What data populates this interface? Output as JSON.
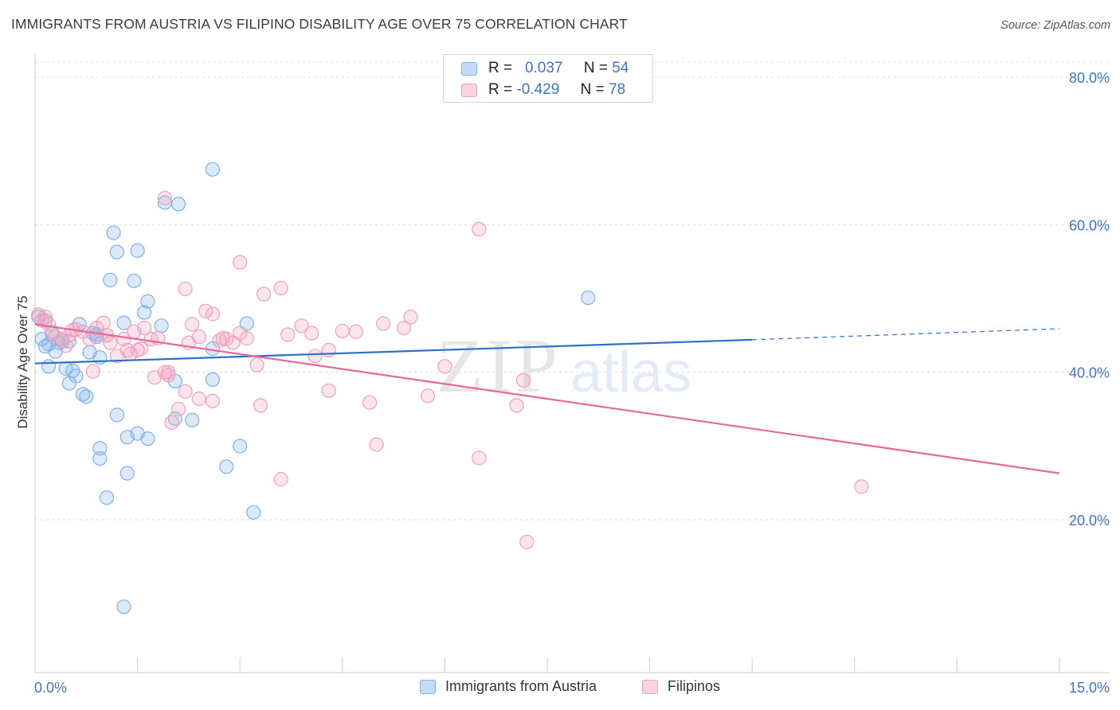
{
  "title": "IMMIGRANTS FROM AUSTRIA VS FILIPINO DISABILITY AGE OVER 75 CORRELATION CHART",
  "source": "Source: ZipAtlas.com",
  "watermark": {
    "zip": "ZIP",
    "atlas": "atlas"
  },
  "legend_top": [
    {
      "r_label": "R =",
      "r_value": "0.037",
      "n_label": "N =",
      "n_value": "54",
      "color": "#7fb0ea"
    },
    {
      "r_label": "R =",
      "r_value": "-0.429",
      "n_label": "N =",
      "n_value": "78",
      "color": "#f0a0bb"
    }
  ],
  "legend_bottom": [
    {
      "label": "Immigrants from Austria",
      "color": "#7fb0ea"
    },
    {
      "label": "Filipinos",
      "color": "#f0a0bb"
    }
  ],
  "chart_data": {
    "type": "scatter",
    "title": "IMMIGRANTS FROM AUSTRIA VS FILIPINO DISABILITY AGE OVER 75 CORRELATION CHART",
    "xlabel": "",
    "ylabel": "Disability Age Over 75",
    "xlim": [
      0,
      15
    ],
    "ylim": [
      0,
      83
    ],
    "x_tick_labels": [
      "0.0%",
      "15.0%"
    ],
    "y_ticks": [
      20,
      40,
      60,
      80
    ],
    "y_tick_labels": [
      "20.0%",
      "40.0%",
      "60.0%",
      "80.0%"
    ],
    "grid": "horizontal dashed",
    "legend_placement": "top-center and bottom",
    "series": [
      {
        "name": "Immigrants from Austria",
        "color": "#7fb0ea",
        "line_color": "#2f6fcc",
        "r": 0.037,
        "n": 54,
        "trend": {
          "x0": 0,
          "y0": 41.2,
          "x1": 10.5,
          "y1": 44.4,
          "dashed_to_x": 15,
          "dashed_to_y": 45.9
        },
        "points": [
          [
            0.05,
            47.5
          ],
          [
            0.1,
            44.5
          ],
          [
            0.15,
            43.5
          ],
          [
            0.2,
            43.8
          ],
          [
            0.25,
            45.2
          ],
          [
            0.3,
            42.8
          ],
          [
            0.35,
            44.0
          ],
          [
            0.2,
            40.8
          ],
          [
            0.45,
            40.5
          ],
          [
            0.5,
            44.2
          ],
          [
            0.55,
            40.2
          ],
          [
            0.6,
            39.5
          ],
          [
            0.5,
            38.5
          ],
          [
            0.7,
            37.0
          ],
          [
            0.75,
            36.7
          ],
          [
            0.8,
            42.7
          ],
          [
            0.85,
            45.3
          ],
          [
            0.9,
            45.1
          ],
          [
            0.95,
            42.0
          ],
          [
            1.1,
            52.5
          ],
          [
            1.15,
            58.9
          ],
          [
            1.2,
            56.3
          ],
          [
            1.3,
            46.7
          ],
          [
            1.45,
            52.4
          ],
          [
            1.5,
            56.5
          ],
          [
            1.6,
            48.1
          ],
          [
            1.65,
            49.6
          ],
          [
            1.85,
            46.3
          ],
          [
            1.9,
            63.0
          ],
          [
            2.05,
            38.8
          ],
          [
            2.1,
            62.8
          ],
          [
            2.6,
            67.5
          ],
          [
            2.6,
            43.2
          ],
          [
            2.6,
            39.0
          ],
          [
            3.1,
            46.6
          ],
          [
            1.2,
            34.2
          ],
          [
            1.35,
            31.2
          ],
          [
            1.5,
            31.7
          ],
          [
            1.65,
            31.0
          ],
          [
            2.05,
            33.7
          ],
          [
            2.3,
            33.5
          ],
          [
            0.95,
            29.7
          ],
          [
            0.95,
            28.3
          ],
          [
            1.35,
            26.3
          ],
          [
            1.05,
            23.0
          ],
          [
            2.8,
            27.2
          ],
          [
            3.0,
            30.0
          ],
          [
            3.2,
            21.0
          ],
          [
            1.3,
            8.2
          ],
          [
            8.1,
            50.1
          ],
          [
            0.15,
            47.0
          ],
          [
            0.4,
            44.2
          ],
          [
            0.65,
            46.5
          ],
          [
            0.9,
            44.8
          ]
        ]
      },
      {
        "name": "Filipinos",
        "color": "#f0a0bb",
        "line_color": "#e8679a",
        "r": -0.429,
        "n": 78,
        "trend": {
          "x0": 0,
          "y0": 46.5,
          "x1": 15,
          "y1": 26.3
        },
        "points": [
          [
            0.05,
            47.8
          ],
          [
            0.1,
            47.0
          ],
          [
            0.15,
            47.5
          ],
          [
            0.2,
            46.5
          ],
          [
            0.25,
            45.5
          ],
          [
            0.3,
            44.8
          ],
          [
            0.4,
            44.5
          ],
          [
            0.5,
            45.0
          ],
          [
            0.6,
            45.8
          ],
          [
            0.7,
            45.5
          ],
          [
            0.8,
            44.5
          ],
          [
            0.9,
            46.0
          ],
          [
            1.0,
            46.7
          ],
          [
            1.05,
            45.0
          ],
          [
            1.1,
            44.0
          ],
          [
            1.2,
            42.2
          ],
          [
            1.3,
            44.5
          ],
          [
            1.35,
            43.0
          ],
          [
            1.4,
            42.5
          ],
          [
            1.45,
            45.5
          ],
          [
            1.5,
            43.0
          ],
          [
            1.6,
            46.0
          ],
          [
            1.7,
            44.5
          ],
          [
            1.75,
            39.3
          ],
          [
            1.8,
            44.6
          ],
          [
            1.9,
            40.0
          ],
          [
            1.95,
            40.0
          ],
          [
            2.0,
            33.2
          ],
          [
            2.1,
            35.0
          ],
          [
            2.2,
            37.4
          ],
          [
            2.25,
            44.0
          ],
          [
            2.3,
            46.5
          ],
          [
            2.4,
            44.8
          ],
          [
            2.5,
            48.3
          ],
          [
            2.6,
            47.9
          ],
          [
            2.7,
            44.3
          ],
          [
            2.8,
            44.5
          ],
          [
            2.9,
            44.0
          ],
          [
            3.0,
            45.3
          ],
          [
            3.1,
            44.6
          ],
          [
            3.25,
            41.0
          ],
          [
            3.3,
            35.5
          ],
          [
            3.35,
            50.6
          ],
          [
            3.6,
            51.4
          ],
          [
            3.7,
            45.1
          ],
          [
            3.9,
            46.3
          ],
          [
            4.05,
            45.3
          ],
          [
            4.1,
            42.2
          ],
          [
            4.3,
            43.0
          ],
          [
            4.3,
            37.5
          ],
          [
            4.5,
            45.6
          ],
          [
            4.7,
            45.5
          ],
          [
            4.9,
            35.9
          ],
          [
            5.0,
            30.2
          ],
          [
            5.1,
            46.6
          ],
          [
            5.4,
            46.0
          ],
          [
            5.5,
            47.5
          ],
          [
            5.75,
            36.8
          ],
          [
            6.0,
            40.8
          ],
          [
            6.5,
            28.4
          ],
          [
            6.5,
            59.4
          ],
          [
            7.05,
            35.5
          ],
          [
            7.15,
            38.9
          ],
          [
            7.2,
            17.0
          ],
          [
            3.0,
            54.9
          ],
          [
            1.9,
            63.6
          ],
          [
            2.2,
            51.3
          ],
          [
            2.6,
            36.1
          ],
          [
            2.4,
            36.4
          ],
          [
            1.55,
            43.2
          ],
          [
            0.85,
            40.1
          ],
          [
            0.45,
            43.6
          ],
          [
            12.1,
            24.5
          ],
          [
            3.6,
            25.5
          ],
          [
            0.55,
            45.7
          ],
          [
            2.75,
            44.6
          ],
          [
            1.95,
            39.6
          ],
          [
            1.05,
            45.0
          ]
        ]
      }
    ]
  }
}
